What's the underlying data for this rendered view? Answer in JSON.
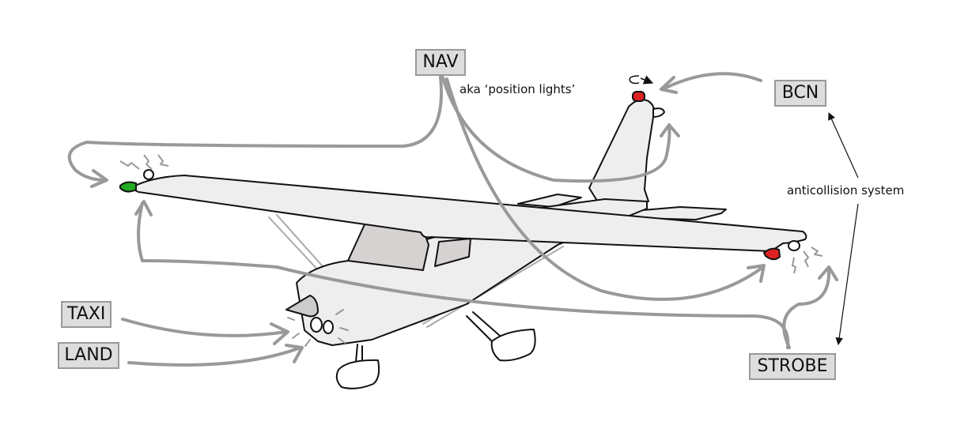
{
  "labels": {
    "nav": "NAV",
    "bcn": "BCN",
    "taxi": "TAXI",
    "land": "LAND",
    "strobe": "STROBE"
  },
  "notes": {
    "nav_aka": "aka ‘position lights’",
    "anticollision": "anticollision system"
  },
  "colors": {
    "label_box_fill": "#dddddd",
    "label_box_border": "#999999",
    "callout_arrow": "#999999",
    "airframe_fill": "#eeeeee",
    "window_fill": "#d7d2d2",
    "nav_light_left": "#22aa22",
    "nav_light_right": "#dd2222",
    "beacon_light": "#dd2222",
    "note_arrow": "#111111"
  },
  "icons": [
    "airplane-illustration",
    "rotating-beacon-icon",
    "strobe-flash-icon",
    "arrow-icon"
  ]
}
